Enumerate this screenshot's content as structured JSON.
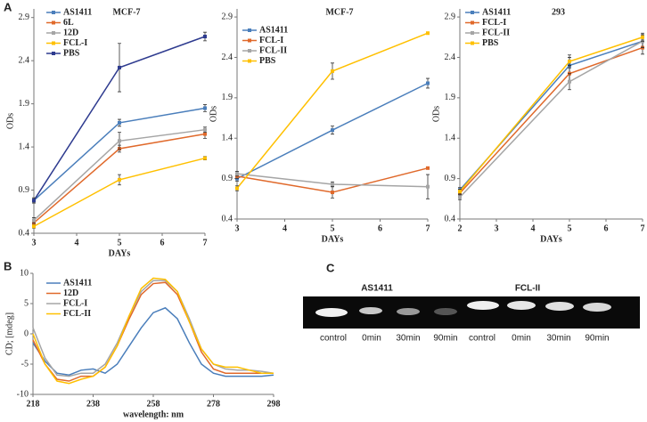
{
  "panel_labels": [
    "A",
    "B",
    "C"
  ],
  "chart_data": [
    {
      "type": "line",
      "title": "MCF-7",
      "x_label": "DAYs",
      "y_label": "ODs",
      "xlim": [
        3,
        7
      ],
      "xticks": [
        3,
        4,
        5,
        6,
        7
      ],
      "ylim": [
        0.4,
        3.0
      ],
      "yticks": [
        0.4,
        0.9,
        1.4,
        1.9,
        2.4,
        2.9
      ],
      "x": [
        3,
        5,
        7
      ],
      "markers": true,
      "legend": "top-left",
      "series": [
        {
          "name": "AS1411",
          "color": "#4a7ebb",
          "values": [
            0.78,
            1.68,
            1.85
          ],
          "errors": [
            0.03,
            0.04,
            0.04
          ]
        },
        {
          "name": "6L",
          "color": "#e0692b",
          "values": [
            0.52,
            1.38,
            1.55
          ],
          "errors": [
            0.02,
            0.04,
            0.05
          ]
        },
        {
          "name": "12D",
          "color": "#a5a5a5",
          "values": [
            0.55,
            1.47,
            1.6
          ],
          "errors": [
            0.03,
            0.1,
            0.03
          ]
        },
        {
          "name": "FCL-I",
          "color": "#ffc000",
          "values": [
            0.48,
            1.02,
            1.27
          ],
          "errors": [
            0.02,
            0.06,
            0.02
          ]
        },
        {
          "name": "PBS",
          "color": "#2e3b8f",
          "values": [
            0.78,
            2.32,
            2.68
          ],
          "errors": [
            0.03,
            0.28,
            0.05
          ]
        }
      ]
    },
    {
      "type": "line",
      "title": "MCF-7",
      "x_label": "DAYs",
      "y_label": "ODs",
      "xlim": [
        3,
        7
      ],
      "xticks": [
        3,
        4,
        5,
        6,
        7
      ],
      "ylim": [
        0.4,
        3.0
      ],
      "yticks": [
        0.4,
        0.9,
        1.4,
        1.9,
        2.4,
        2.9
      ],
      "x": [
        3,
        5,
        7
      ],
      "markers": true,
      "legend": "top-left",
      "series": [
        {
          "name": "AS1411",
          "color": "#4a7ebb",
          "values": [
            0.9,
            1.5,
            2.08
          ],
          "errors": [
            0.03,
            0.05,
            0.06
          ]
        },
        {
          "name": "FCL-I",
          "color": "#e0692b",
          "values": [
            0.93,
            0.73,
            1.03
          ],
          "errors": [
            0.03,
            0.07,
            0.01
          ]
        },
        {
          "name": "FCL-II",
          "color": "#a5a5a5",
          "values": [
            0.96,
            0.83,
            0.8
          ],
          "errors": [
            0.03,
            0.03,
            0.15
          ]
        },
        {
          "name": "PBS",
          "color": "#ffc000",
          "values": [
            0.78,
            2.23,
            2.7
          ],
          "errors": [
            0.03,
            0.1,
            0.01
          ]
        }
      ]
    },
    {
      "type": "line",
      "title": "293",
      "x_label": "DAYs",
      "y_label": "ODs",
      "xlim": [
        2,
        7
      ],
      "xticks": [
        2,
        3,
        4,
        5,
        6,
        7
      ],
      "ylim": [
        0.4,
        3.0
      ],
      "yticks": [
        0.4,
        0.9,
        1.4,
        1.9,
        2.4,
        2.9
      ],
      "x": [
        2,
        5,
        7
      ],
      "markers": true,
      "legend": "top-left",
      "series": [
        {
          "name": "AS1411",
          "color": "#4a7ebb",
          "values": [
            0.76,
            2.3,
            2.6
          ],
          "errors": [
            0.03,
            0.1,
            0.08
          ]
        },
        {
          "name": "FCL-I",
          "color": "#e0692b",
          "values": [
            0.72,
            2.2,
            2.52
          ],
          "errors": [
            0.03,
            0.1,
            0.08
          ]
        },
        {
          "name": "FCL-II",
          "color": "#a5a5a5",
          "values": [
            0.67,
            2.1,
            2.6
          ],
          "errors": [
            0.03,
            0.1,
            0.08
          ]
        },
        {
          "name": "PBS",
          "color": "#ffc000",
          "values": [
            0.74,
            2.35,
            2.65
          ],
          "errors": [
            0.03,
            0.08,
            0.05
          ]
        }
      ]
    },
    {
      "type": "line",
      "x_label": "wavelength: nm",
      "y_label": "CD; [mdeg]",
      "xlim": [
        218,
        298
      ],
      "xticks": [
        218,
        238,
        258,
        278,
        298
      ],
      "ylim": [
        -10,
        10
      ],
      "yticks": [
        -10,
        -5,
        0,
        5,
        10
      ],
      "x": [
        218,
        222,
        226,
        230,
        234,
        238,
        242,
        246,
        250,
        254,
        258,
        262,
        266,
        270,
        274,
        278,
        282,
        286,
        290,
        294,
        298
      ],
      "markers": false,
      "legend": "top-left",
      "series": [
        {
          "name": "AS1411",
          "color": "#4a7ebb",
          "values": [
            -1.5,
            -4.5,
            -6.5,
            -6.8,
            -6.0,
            -5.8,
            -6.5,
            -5,
            -2,
            1,
            3.5,
            4.3,
            2.5,
            -1.5,
            -5,
            -6.5,
            -7,
            -7,
            -7,
            -7,
            -6.8
          ]
        },
        {
          "name": "12D",
          "color": "#e0692b",
          "values": [
            -1,
            -5,
            -7.5,
            -7.8,
            -7,
            -7,
            -5.5,
            -2,
            2.5,
            6.5,
            8.3,
            8.5,
            6.5,
            2,
            -3,
            -5.8,
            -6.5,
            -6.5,
            -6.5,
            -6.5,
            -6.5
          ]
        },
        {
          "name": "FCL-I",
          "color": "#a5a5a5",
          "values": [
            1,
            -4,
            -6.8,
            -7,
            -6.5,
            -6.5,
            -5,
            -1.5,
            3,
            7,
            8.8,
            8.8,
            7,
            2.5,
            -2.5,
            -5,
            -5.8,
            -6,
            -6,
            -6.2,
            -6.5
          ]
        },
        {
          "name": "FCL-II",
          "color": "#ffc000",
          "values": [
            0,
            -5,
            -7.8,
            -8.2,
            -7.5,
            -7,
            -5.5,
            -2,
            3,
            7.5,
            9.2,
            9,
            7,
            2,
            -2.5,
            -5,
            -5.5,
            -5.5,
            -6,
            -6.5,
            -6.5
          ]
        }
      ]
    }
  ],
  "gel": {
    "groups": [
      "AS1411",
      "FCL-II"
    ],
    "lanes": [
      "control",
      "0min",
      "30min",
      "90min",
      "control",
      "0min",
      "30min",
      "90min"
    ]
  }
}
